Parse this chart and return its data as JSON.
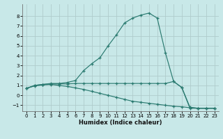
{
  "xlabel": "Humidex (Indice chaleur)",
  "bg_color": "#c8e8e8",
  "line_color": "#2a7a70",
  "grid_color": "#b0cccc",
  "xlim": [
    -0.5,
    23.5
  ],
  "ylim": [
    -1.6,
    9.2
  ],
  "xticks": [
    0,
    1,
    2,
    3,
    4,
    5,
    6,
    7,
    8,
    9,
    10,
    11,
    12,
    13,
    14,
    15,
    16,
    17,
    18,
    19,
    20,
    21,
    22,
    23
  ],
  "yticks": [
    -1,
    0,
    1,
    2,
    3,
    4,
    5,
    6,
    7,
    8
  ],
  "line1_x": [
    0,
    1,
    2,
    3,
    4,
    5,
    6,
    7,
    8,
    9,
    10,
    11,
    12,
    13,
    14,
    15,
    16,
    17,
    18,
    19,
    20,
    21,
    22,
    23
  ],
  "line1_y": [
    0.7,
    1.0,
    1.1,
    1.2,
    1.2,
    1.3,
    1.5,
    2.5,
    3.2,
    3.8,
    5.0,
    6.1,
    7.3,
    7.8,
    8.1,
    8.3,
    7.8,
    4.3,
    1.4,
    0.8,
    -1.2,
    -1.3,
    -1.3,
    -1.3
  ],
  "line2_x": [
    0,
    1,
    2,
    3,
    4,
    5,
    6,
    7,
    8,
    9,
    10,
    11,
    12,
    13,
    14,
    15,
    16,
    17,
    18,
    19,
    20,
    21,
    22,
    23
  ],
  "line2_y": [
    0.7,
    1.0,
    1.1,
    1.15,
    1.15,
    1.15,
    1.2,
    1.2,
    1.2,
    1.2,
    1.2,
    1.2,
    1.2,
    1.2,
    1.2,
    1.2,
    1.2,
    1.2,
    1.4,
    0.8,
    -1.3,
    -1.3,
    -1.3,
    -1.3
  ],
  "line3_x": [
    0,
    1,
    2,
    3,
    4,
    5,
    6,
    7,
    8,
    9,
    10,
    11,
    12,
    13,
    14,
    15,
    16,
    17,
    18,
    19,
    20,
    21,
    22,
    23
  ],
  "line3_y": [
    0.7,
    0.95,
    1.05,
    1.1,
    1.0,
    0.9,
    0.75,
    0.6,
    0.4,
    0.2,
    0.0,
    -0.2,
    -0.4,
    -0.6,
    -0.7,
    -0.8,
    -0.9,
    -1.0,
    -1.1,
    -1.15,
    -1.25,
    -1.3,
    -1.3,
    -1.3
  ]
}
